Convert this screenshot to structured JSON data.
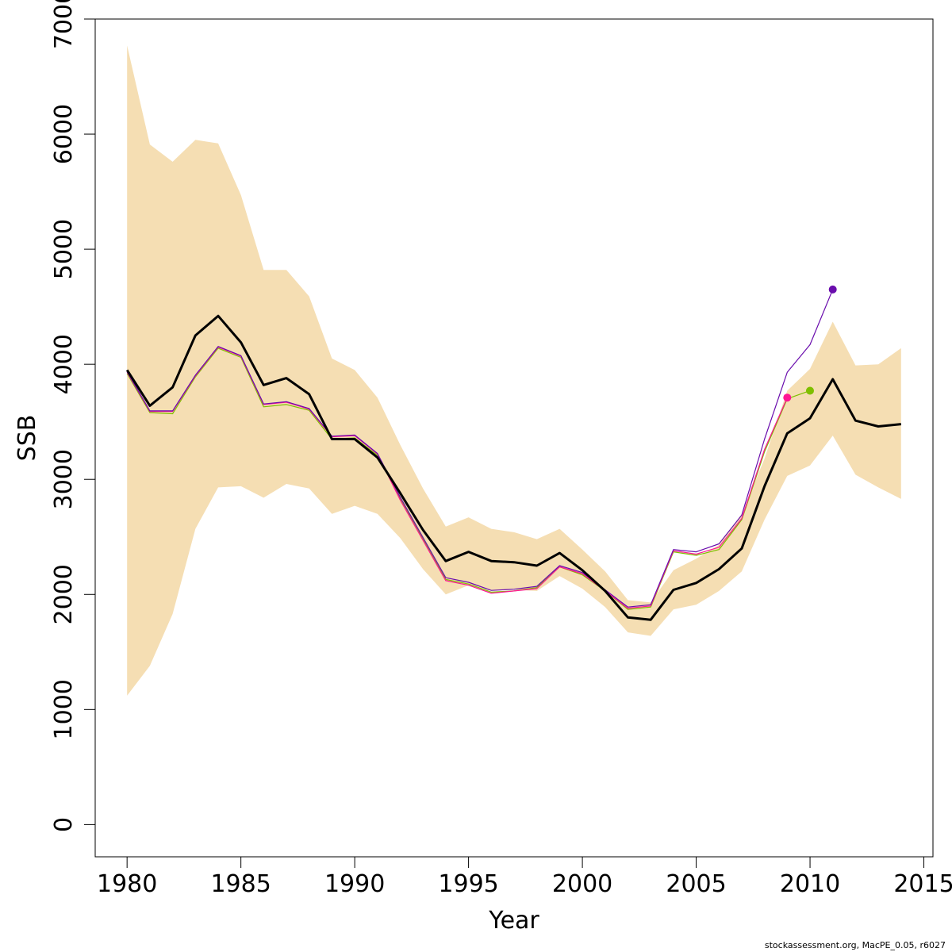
{
  "chart_data": {
    "type": "line",
    "xlabel": "Year",
    "ylabel": "SSB",
    "xlim": [
      1978.6,
      2015.4
    ],
    "ylim": [
      -280,
      7000
    ],
    "x_ticks": [
      1980,
      1985,
      1990,
      1995,
      2000,
      2005,
      2010,
      2015
    ],
    "y_ticks": [
      0,
      1000,
      2000,
      3000,
      4000,
      5000,
      6000,
      7000
    ],
    "x_tick_labels": [
      "1980",
      "1985",
      "1990",
      "1995",
      "2000",
      "2005",
      "2010",
      "2015"
    ],
    "y_tick_labels": [
      "0",
      "1000",
      "2000",
      "3000",
      "4000",
      "5000",
      "6000",
      "7000"
    ],
    "grid": false,
    "band": {
      "color": "#F5DEB3",
      "x": [
        1980,
        1981,
        1982,
        1983,
        1984,
        1985,
        1986,
        1987,
        1988,
        1989,
        1990,
        1991,
        1992,
        1993,
        1994,
        1995,
        1996,
        1997,
        1998,
        1999,
        2000,
        2001,
        2002,
        2003,
        2004,
        2005,
        2006,
        2007,
        2008,
        2009,
        2010,
        2011,
        2012,
        2013,
        2014
      ],
      "lower": [
        1120,
        1380,
        1830,
        2570,
        2930,
        2940,
        2840,
        2960,
        2920,
        2700,
        2770,
        2700,
        2490,
        2220,
        2000,
        2080,
        2030,
        2040,
        2030,
        2160,
        2050,
        1890,
        1670,
        1640,
        1870,
        1910,
        2030,
        2200,
        2650,
        3030,
        3120,
        3380,
        3040,
        2930,
        2830
      ],
      "upper": [
        6770,
        5910,
        5760,
        5950,
        5920,
        5470,
        4820,
        4820,
        4590,
        4050,
        3950,
        3710,
        3300,
        2920,
        2590,
        2670,
        2570,
        2540,
        2480,
        2570,
        2390,
        2200,
        1950,
        1930,
        2210,
        2310,
        2430,
        2700,
        3180,
        3770,
        3960,
        4370,
        3990,
        4000,
        4140
      ]
    },
    "series": [
      {
        "color": "#000000",
        "width": 3,
        "x": [
          1980,
          1981,
          1982,
          1983,
          1984,
          1985,
          1986,
          1987,
          1988,
          1989,
          1990,
          1991,
          1992,
          1993,
          1994,
          1995,
          1996,
          1997,
          1998,
          1999,
          2000,
          2001,
          2002,
          2003,
          2004,
          2005,
          2006,
          2007,
          2008,
          2009,
          2010,
          2011,
          2012,
          2013,
          2014
        ],
        "y": [
          3950,
          3640,
          3800,
          4250,
          4420,
          4190,
          3820,
          3880,
          3740,
          3350,
          3350,
          3190,
          2880,
          2560,
          2290,
          2370,
          2290,
          2280,
          2250,
          2360,
          2210,
          2030,
          1800,
          1780,
          2040,
          2100,
          2220,
          2400,
          2940,
          3400,
          3530,
          3870,
          3510,
          3460,
          3480
        ]
      },
      {
        "color": "#7FBF00",
        "width": 1.2,
        "x": [
          1980,
          1981,
          1982,
          1983,
          1984,
          1985,
          1986,
          1987,
          1988,
          1989,
          1990,
          1991,
          1992,
          1993,
          1994,
          1995,
          1996,
          1997,
          1998,
          1999,
          2000,
          2001,
          2002,
          2003,
          2004,
          2005,
          2006,
          2007,
          2008,
          2009,
          2010
        ],
        "y": [
          3920,
          3580,
          3570,
          3890,
          4140,
          4060,
          3630,
          3650,
          3600,
          3350,
          3360,
          3210,
          2830,
          2480,
          2130,
          2090,
          2020,
          2030,
          2060,
          2240,
          2170,
          2030,
          1870,
          1890,
          2370,
          2340,
          2390,
          2650,
          3240,
          3700,
          3770
        ],
        "end_point": true
      },
      {
        "color": "#FF1493",
        "width": 1.2,
        "x": [
          1980,
          1981,
          1982,
          1983,
          1984,
          1985,
          1986,
          1987,
          1988,
          1989,
          1990,
          1991,
          1992,
          1993,
          1994,
          1995,
          1996,
          1997,
          1998,
          1999,
          2000,
          2001,
          2002,
          2003,
          2004,
          2005,
          2006,
          2007,
          2008,
          2009
        ],
        "y": [
          3930,
          3590,
          3590,
          3900,
          4150,
          4070,
          3650,
          3670,
          3610,
          3370,
          3380,
          3220,
          2820,
          2470,
          2120,
          2080,
          2010,
          2030,
          2050,
          2240,
          2180,
          2030,
          1880,
          1900,
          2380,
          2350,
          2410,
          2660,
          3260,
          3710
        ],
        "end_point": true
      },
      {
        "color": "#6A0DAD",
        "width": 1.2,
        "x": [
          1980,
          1981,
          1982,
          1983,
          1984,
          1985,
          1986,
          1987,
          1988,
          1989,
          1990,
          1991,
          1992,
          1993,
          1994,
          1995,
          1996,
          1997,
          1998,
          1999,
          2000,
          2001,
          2002,
          2003,
          2004,
          2005,
          2006,
          2007,
          2008,
          2009,
          2010,
          2011
        ],
        "y": [
          3935,
          3595,
          3595,
          3905,
          4155,
          4075,
          3655,
          3675,
          3615,
          3375,
          3385,
          3225,
          2845,
          2495,
          2145,
          2105,
          2035,
          2045,
          2070,
          2250,
          2190,
          2040,
          1890,
          1910,
          2390,
          2370,
          2440,
          2690,
          3350,
          3930,
          4170,
          4650
        ],
        "end_point": true
      }
    ]
  },
  "footer": "stockassessment.org, MacPE_0.05, r6027"
}
